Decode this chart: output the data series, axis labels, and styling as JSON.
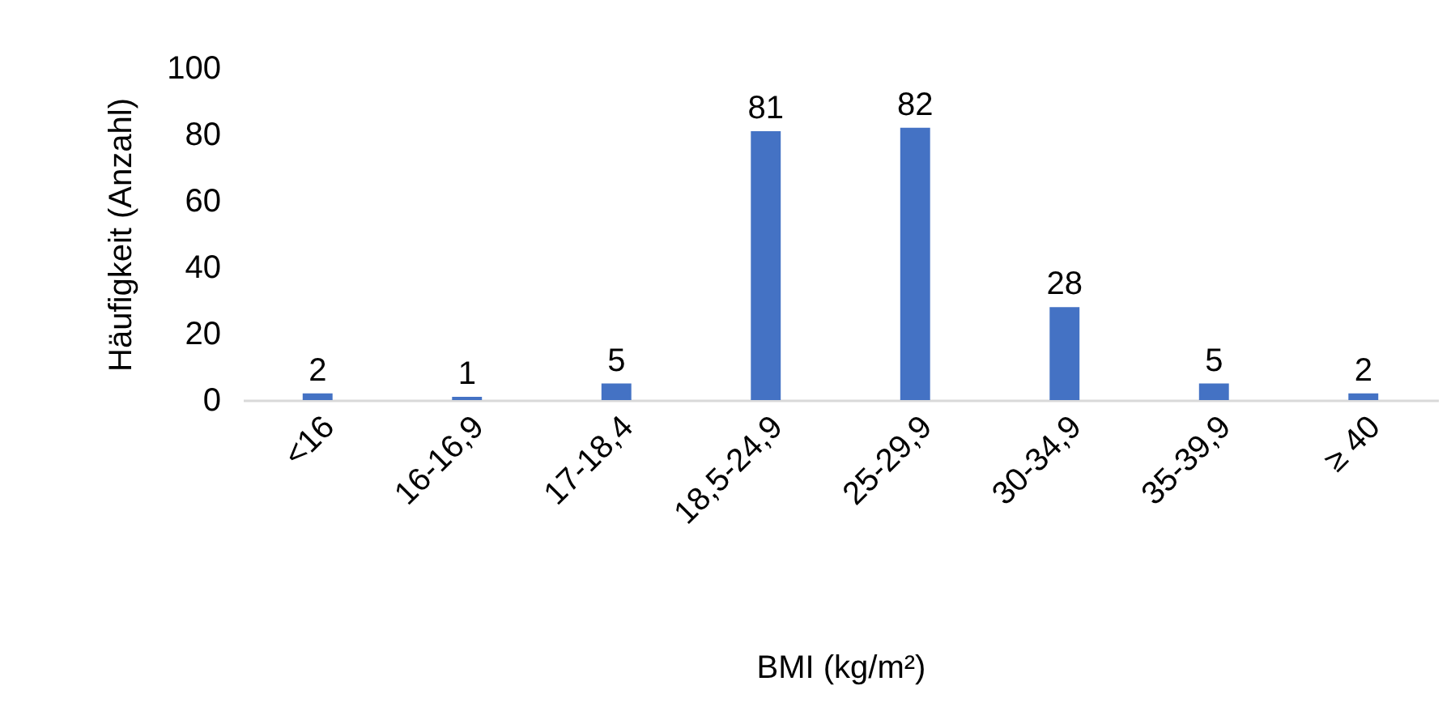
{
  "chart_data": {
    "type": "bar",
    "xlabel": "BMI (kg/m²)",
    "ylabel": "Häufigkeit (Anzahl)",
    "categories": [
      "<16",
      "16-16,9",
      "17-18,4",
      "18,5-24,9",
      "25-29,9",
      "30-34,9",
      "35-39,9",
      "≥ 40"
    ],
    "values": [
      2,
      1,
      5,
      81,
      82,
      28,
      5,
      2
    ],
    "color": "#4472c4",
    "ylim": [
      0,
      100
    ],
    "yticks": [
      0,
      20,
      40,
      60,
      80,
      100
    ],
    "data_labels": true
  }
}
